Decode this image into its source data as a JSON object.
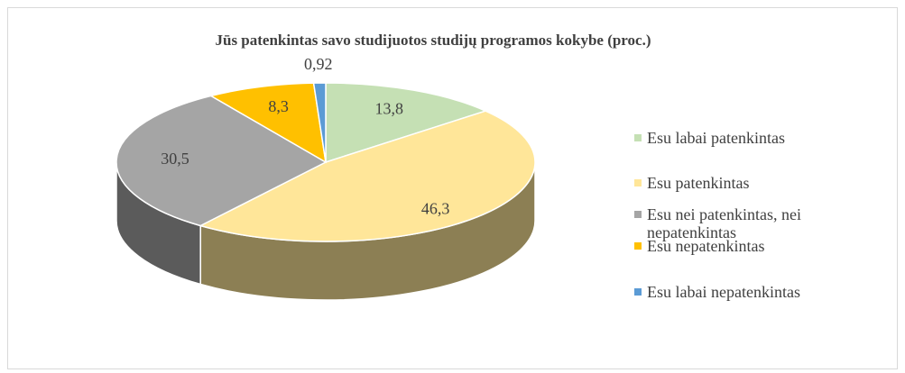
{
  "chart_data": {
    "type": "pie3d",
    "title": "Jūs patenkintas savo studijuotos studijų programos kokybe (proc.)",
    "categories": [
      "Esu labai patenkintas",
      "Esu patenkintas",
      "Esu nei patenkintas, nei nepatenkintas",
      "Esu nepatenkintas",
      "Esu labai nepatenkintas"
    ],
    "values": [
      13.8,
      46.3,
      30.5,
      8.3,
      0.92
    ],
    "value_labels": [
      "13,8",
      "46,3",
      "30,5",
      "8,3",
      "0,92"
    ],
    "colors": [
      "#c5e0b4",
      "#ffe699",
      "#a5a5a5",
      "#ffc000",
      "#5b9bd5"
    ],
    "legend": "right"
  }
}
